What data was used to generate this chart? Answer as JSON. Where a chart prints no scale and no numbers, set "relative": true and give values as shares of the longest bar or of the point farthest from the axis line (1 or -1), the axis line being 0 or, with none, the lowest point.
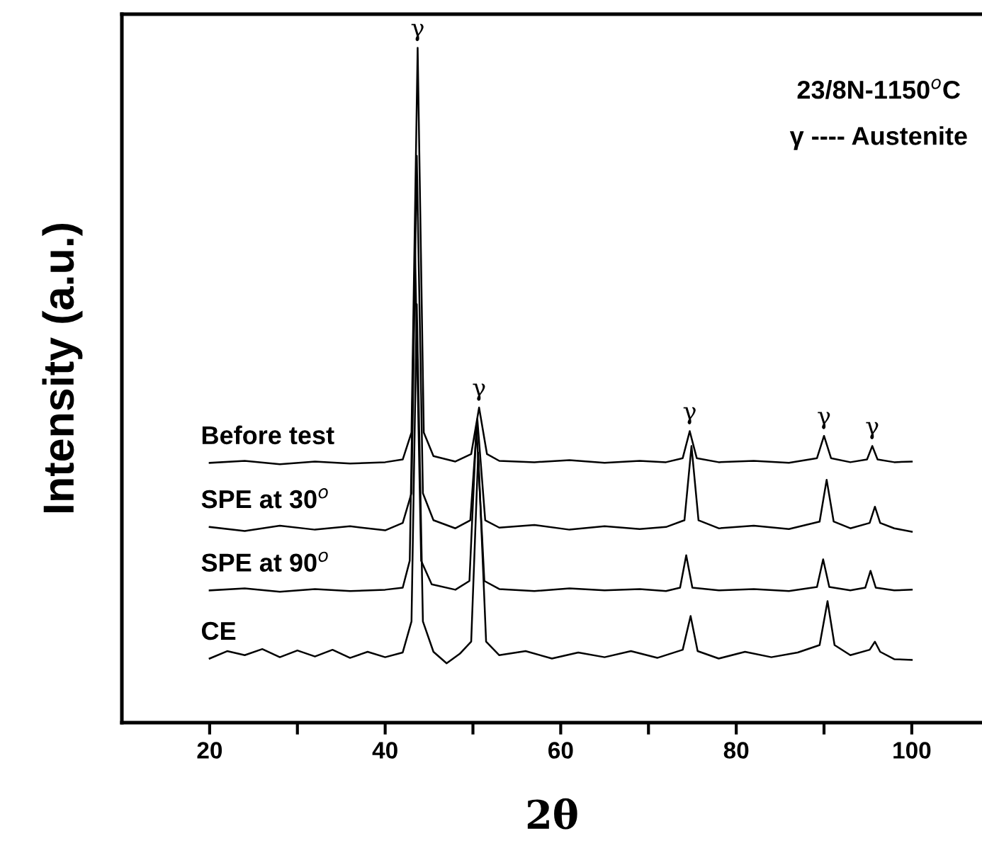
{
  "chart_data": {
    "type": "line",
    "relative": true,
    "xlabel": "2θ",
    "ylabel": "Intensity (a.u.)",
    "xlim": [
      10,
      108
    ],
    "xticks": [
      20,
      {
        "value": 30,
        "label": null
      },
      40,
      {
        "value": 50,
        "label": null
      },
      60,
      {
        "value": 70,
        "label": null
      },
      80,
      {
        "value": 90,
        "label": null
      },
      100
    ],
    "tick_labels": "x",
    "grid": false,
    "legend": false,
    "marker": "none",
    "line_style": "solid",
    "annotations": [
      "23/8N-1150$^{o}$C",
      "γ ---- Austenite",
      {
        "text": "γ",
        "x": 43.7,
        "y": 1.0
      },
      {
        "text": "γ",
        "x": 50.7,
        "y": 0.467
      },
      {
        "text": "γ",
        "x": 74.7,
        "y": 0.432
      },
      {
        "text": "γ",
        "x": 90.0,
        "y": 0.425
      },
      {
        "text": "γ",
        "x": 95.5,
        "y": 0.41
      }
    ],
    "series": [
      {
        "name": "Before test",
        "color": "#000000",
        "x": [
          20,
          24,
          28,
          32,
          36,
          40,
          42,
          43.0,
          43.7,
          44.4,
          45.5,
          48,
          49.8,
          50.7,
          51.6,
          53,
          57,
          61,
          65,
          69,
          72,
          73.9,
          74.7,
          75.5,
          78,
          82,
          86,
          89.2,
          90.0,
          90.8,
          93,
          94.9,
          95.5,
          96.1,
          98,
          100
        ],
        "values": [
          0.385,
          0.388,
          0.383,
          0.387,
          0.384,
          0.386,
          0.39,
          0.43,
          1.0,
          0.43,
          0.395,
          0.387,
          0.398,
          0.467,
          0.398,
          0.388,
          0.386,
          0.389,
          0.385,
          0.388,
          0.386,
          0.392,
          0.432,
          0.392,
          0.386,
          0.388,
          0.385,
          0.392,
          0.425,
          0.392,
          0.386,
          0.39,
          0.41,
          0.39,
          0.386,
          0.387
        ]
      },
      {
        "name": "SPE at 30$^{o}$",
        "color": "#000000",
        "x": [
          20,
          24,
          28,
          32,
          36,
          40,
          42,
          43.0,
          43.6,
          44.3,
          45.5,
          48,
          49.7,
          50.5,
          51.4,
          53,
          57,
          61,
          65,
          69,
          72,
          74.1,
          74.9,
          75.7,
          78,
          82,
          86,
          89.5,
          90.3,
          91.1,
          93,
          95.2,
          95.8,
          96.4,
          98,
          100
        ],
        "values": [
          0.29,
          0.284,
          0.292,
          0.286,
          0.291,
          0.285,
          0.296,
          0.34,
          0.84,
          0.34,
          0.3,
          0.288,
          0.3,
          0.45,
          0.3,
          0.289,
          0.293,
          0.286,
          0.291,
          0.287,
          0.29,
          0.3,
          0.41,
          0.3,
          0.288,
          0.292,
          0.287,
          0.298,
          0.36,
          0.298,
          0.288,
          0.296,
          0.32,
          0.296,
          0.288,
          0.283
        ]
      },
      {
        "name": "SPE at 90$^{o}$",
        "color": "#000000",
        "x": [
          20,
          24,
          28,
          32,
          36,
          40,
          42,
          42.8,
          43.4,
          44.1,
          45.3,
          48,
          49.6,
          50.4,
          51.3,
          53,
          57,
          61,
          65,
          69,
          72,
          73.6,
          74.3,
          75.0,
          78,
          82,
          86,
          89.2,
          89.9,
          90.6,
          93,
          94.7,
          95.3,
          95.9,
          98,
          100
        ],
        "values": [
          0.196,
          0.199,
          0.194,
          0.198,
          0.195,
          0.197,
          0.2,
          0.24,
          0.7,
          0.24,
          0.205,
          0.197,
          0.21,
          0.44,
          0.21,
          0.198,
          0.195,
          0.199,
          0.196,
          0.198,
          0.195,
          0.2,
          0.248,
          0.2,
          0.196,
          0.198,
          0.195,
          0.201,
          0.242,
          0.201,
          0.196,
          0.2,
          0.225,
          0.2,
          0.196,
          0.197
        ]
      },
      {
        "name": "CE",
        "color": "#000000",
        "x": [
          20,
          22,
          24,
          26,
          28,
          30,
          32,
          34,
          36,
          38,
          40,
          42,
          43.0,
          43.6,
          44.3,
          45.5,
          47,
          48.5,
          49.8,
          50.6,
          51.5,
          53,
          56,
          59,
          62,
          65,
          68,
          71,
          73.9,
          74.8,
          75.6,
          78,
          81,
          84,
          87,
          89.5,
          90.4,
          91.2,
          93,
          95.2,
          95.8,
          96.4,
          98,
          100
        ],
        "values": [
          0.095,
          0.106,
          0.1,
          0.109,
          0.097,
          0.107,
          0.098,
          0.108,
          0.096,
          0.105,
          0.097,
          0.104,
          0.15,
          0.62,
          0.15,
          0.105,
          0.088,
          0.102,
          0.12,
          0.4,
          0.12,
          0.1,
          0.106,
          0.095,
          0.104,
          0.097,
          0.106,
          0.096,
          0.108,
          0.158,
          0.106,
          0.095,
          0.105,
          0.097,
          0.104,
          0.115,
          0.18,
          0.115,
          0.1,
          0.108,
          0.12,
          0.105,
          0.094,
          0.093
        ]
      }
    ]
  }
}
